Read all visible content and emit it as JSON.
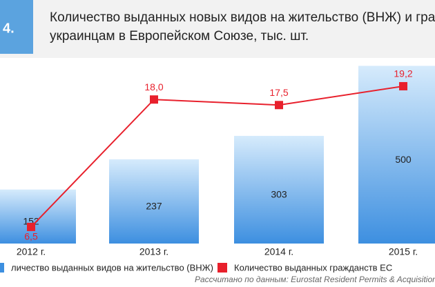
{
  "chart_data": {
    "type": "bar",
    "badge": "4.",
    "title": [
      "Количество выданных новых видов на жительство (ВНЖ) и гражд",
      "украинцам в Европейском Союзе, тыс. шт."
    ],
    "categories": [
      "2012 г.",
      "2013 г.",
      "2014 г.",
      "2015 г."
    ],
    "series": [
      {
        "name": "личество выданных видов на жительство (ВНЖ)",
        "type": "bar",
        "color": "#3d8fe0",
        "values": [
          152,
          237,
          303,
          500
        ]
      },
      {
        "name": "Количество выданных гражданств ЕС",
        "type": "line",
        "axis": "y2",
        "color": "#e8202c",
        "values": [
          6.5,
          18.0,
          17.5,
          19.2
        ],
        "value_labels": [
          "6,5",
          "18,0",
          "17,5",
          "19,2"
        ]
      }
    ],
    "ylim": [
      0,
      530
    ],
    "y2lim": [
      5,
      22
    ],
    "source": "Рассчитано по данным: Eurostat Resident Permits & Acquisition"
  }
}
